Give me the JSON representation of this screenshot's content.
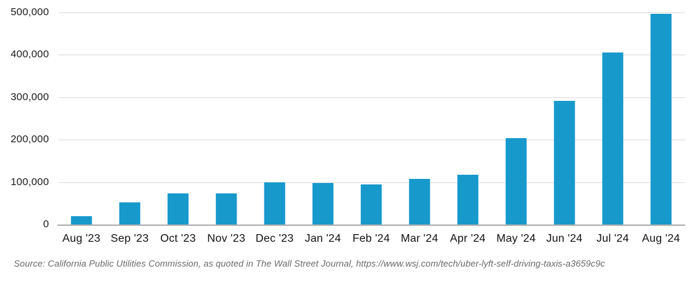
{
  "chart_data": {
    "type": "bar",
    "title": "",
    "xlabel": "",
    "ylabel": "",
    "categories": [
      "Aug '23",
      "Sep '23",
      "Oct '23",
      "Nov '23",
      "Dec '23",
      "Jan '24",
      "Feb '24",
      "Mar '24",
      "Apr '24",
      "May '24",
      "Jun '24",
      "Jul '24",
      "Aug '24"
    ],
    "values": [
      19000,
      52000,
      74000,
      74000,
      99000,
      98000,
      95000,
      108000,
      117000,
      203000,
      291000,
      405000,
      497000
    ],
    "ylim": [
      0,
      500000
    ],
    "yticks": [
      {
        "value": 0,
        "label": "0"
      },
      {
        "value": 100000,
        "label": "100,000"
      },
      {
        "value": 200000,
        "label": "200,000"
      },
      {
        "value": 300000,
        "label": "300,000"
      },
      {
        "value": 400000,
        "label": "400,000"
      },
      {
        "value": 500000,
        "label": "500,000"
      }
    ],
    "grid": "horizontal",
    "legend": "none",
    "bar_color": "#1899cc",
    "grid_color": "#dcdcdc",
    "axis_color": "#b0b0b0",
    "tick_label_color": "#111111"
  },
  "source": {
    "text": "Source: California Public Utilities Commission, as quoted in The Wall Street Journal, https://www.wsj.com/tech/uber-lyft-self-driving-taxis-a3659c9c"
  }
}
